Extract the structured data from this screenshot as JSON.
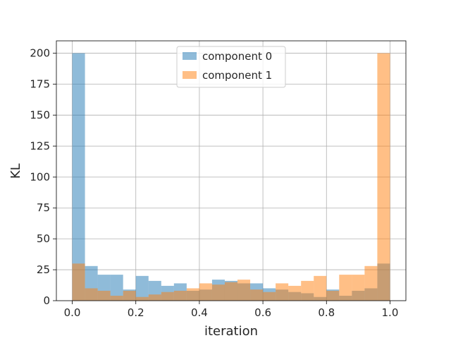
{
  "chart_data": {
    "type": "histogram",
    "title": "",
    "xlabel": "iteration",
    "ylabel": "KL",
    "xlim": [
      -0.05,
      1.05
    ],
    "ylim": [
      0,
      210
    ],
    "xticks": [
      0.0,
      0.2,
      0.4,
      0.6,
      0.8,
      1.0
    ],
    "xtick_labels": [
      "0.0",
      "0.2",
      "0.4",
      "0.6",
      "0.8",
      "1.0"
    ],
    "yticks": [
      0,
      25,
      50,
      75,
      100,
      125,
      150,
      175,
      200
    ],
    "ytick_labels": [
      "0",
      "25",
      "50",
      "75",
      "100",
      "125",
      "150",
      "175",
      "200"
    ],
    "grid": true,
    "legend_position": "top-center",
    "bin_edges": [
      0.0,
      0.04,
      0.08,
      0.12,
      0.16,
      0.2,
      0.24,
      0.28,
      0.32,
      0.36,
      0.4,
      0.44,
      0.48,
      0.52,
      0.56,
      0.6,
      0.64,
      0.68,
      0.72,
      0.76,
      0.8,
      0.84,
      0.88,
      0.92,
      0.96,
      1.0
    ],
    "series": [
      {
        "name": "component 0",
        "color": "#1f77b4",
        "opacity": 0.5,
        "counts": [
          200,
          28,
          21,
          21,
          9,
          20,
          16,
          12,
          14,
          8,
          9,
          17,
          16,
          14,
          14,
          10,
          9,
          7,
          6,
          3,
          9,
          4,
          8,
          10,
          30
        ]
      },
      {
        "name": "component 1",
        "color": "#ff7f0e",
        "opacity": 0.5,
        "counts": [
          30,
          10,
          8,
          4,
          8,
          3,
          5,
          7,
          8,
          10,
          14,
          13,
          15,
          17,
          9,
          7,
          14,
          12,
          16,
          20,
          8,
          21,
          21,
          28,
          200
        ]
      }
    ]
  }
}
